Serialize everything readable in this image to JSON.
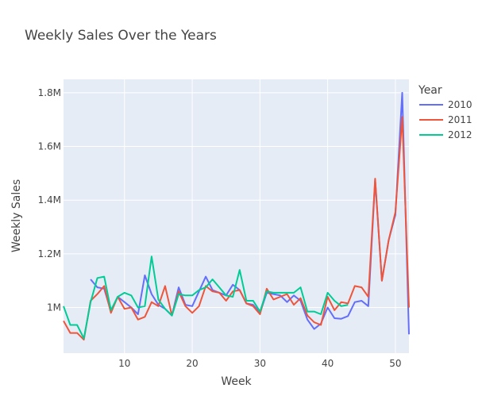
{
  "chart_data": {
    "type": "line",
    "title": "Weekly Sales Over the Years",
    "xlabel": "Week",
    "ylabel": "Weekly Sales",
    "xlim": [
      1,
      52
    ],
    "ylim": [
      830000,
      1850000
    ],
    "x_ticks": [
      10,
      20,
      30,
      40,
      50
    ],
    "y_ticks": [
      1000000,
      1200000,
      1400000,
      1600000,
      1800000
    ],
    "y_tick_labels": [
      "1M",
      "1.2M",
      "1.4M",
      "1.6M",
      "1.8M"
    ],
    "grid": true,
    "legend": {
      "title": "Year",
      "placement": "right"
    },
    "series": [
      {
        "name": "2010",
        "color": "#636efa",
        "x": [
          5,
          6,
          7,
          8,
          9,
          10,
          11,
          12,
          13,
          14,
          15,
          16,
          17,
          18,
          19,
          20,
          21,
          22,
          23,
          24,
          25,
          26,
          27,
          28,
          29,
          30,
          31,
          32,
          33,
          34,
          35,
          36,
          37,
          38,
          39,
          40,
          41,
          42,
          43,
          44,
          45,
          46,
          47,
          48,
          49,
          50,
          51,
          52
        ],
        "y": [
          1105000,
          1075000,
          1070000,
          985000,
          1040000,
          1020000,
          1000000,
          975000,
          1120000,
          1050000,
          1010000,
          995000,
          970000,
          1075000,
          1010000,
          1005000,
          1060000,
          1115000,
          1065000,
          1055000,
          1045000,
          1085000,
          1065000,
          1015000,
          1010000,
          980000,
          1055000,
          1050000,
          1045000,
          1020000,
          1045000,
          1025000,
          955000,
          920000,
          940000,
          1000000,
          960000,
          958000,
          968000,
          1020000,
          1025000,
          1005000,
          1475000,
          1100000,
          1250000,
          1345000,
          1800000,
          900000
        ]
      },
      {
        "name": "2011",
        "color": "#ef553b",
        "x": [
          1,
          2,
          3,
          4,
          5,
          6,
          7,
          8,
          9,
          10,
          11,
          12,
          13,
          14,
          15,
          16,
          17,
          18,
          19,
          20,
          21,
          22,
          23,
          24,
          25,
          26,
          27,
          28,
          29,
          30,
          31,
          32,
          33,
          34,
          35,
          36,
          37,
          38,
          39,
          40,
          41,
          42,
          43,
          44,
          45,
          46,
          47,
          48,
          49,
          50,
          51,
          52
        ],
        "y": [
          950000,
          905000,
          905000,
          880000,
          1025000,
          1050000,
          1080000,
          980000,
          1040000,
          995000,
          1000000,
          955000,
          965000,
          1020000,
          1005000,
          1080000,
          970000,
          1060000,
          1005000,
          980000,
          1005000,
          1080000,
          1060000,
          1055000,
          1025000,
          1060000,
          1065000,
          1015000,
          1005000,
          975000,
          1070000,
          1030000,
          1040000,
          1050000,
          1010000,
          1035000,
          970000,
          945000,
          935000,
          1040000,
          990000,
          1020000,
          1015000,
          1080000,
          1075000,
          1040000,
          1480000,
          1100000,
          1250000,
          1355000,
          1710000,
          1000000
        ]
      },
      {
        "name": "2012",
        "color": "#00cc96",
        "x": [
          1,
          2,
          3,
          4,
          5,
          6,
          7,
          8,
          9,
          10,
          11,
          12,
          13,
          14,
          15,
          16,
          17,
          18,
          19,
          20,
          21,
          22,
          23,
          24,
          25,
          26,
          27,
          28,
          29,
          30,
          31,
          32,
          33,
          34,
          35,
          36,
          37,
          38,
          39,
          40,
          41,
          42,
          43
        ],
        "y": [
          1005000,
          935000,
          935000,
          885000,
          1020000,
          1110000,
          1115000,
          990000,
          1040000,
          1055000,
          1045000,
          1000000,
          1005000,
          1190000,
          1030000,
          995000,
          970000,
          1050000,
          1045000,
          1045000,
          1065000,
          1075000,
          1105000,
          1075000,
          1045000,
          1040000,
          1140000,
          1025000,
          1025000,
          985000,
          1060000,
          1055000,
          1055000,
          1055000,
          1055000,
          1075000,
          985000,
          985000,
          975000,
          1055000,
          1025000,
          1005000,
          1010000
        ]
      }
    ]
  }
}
